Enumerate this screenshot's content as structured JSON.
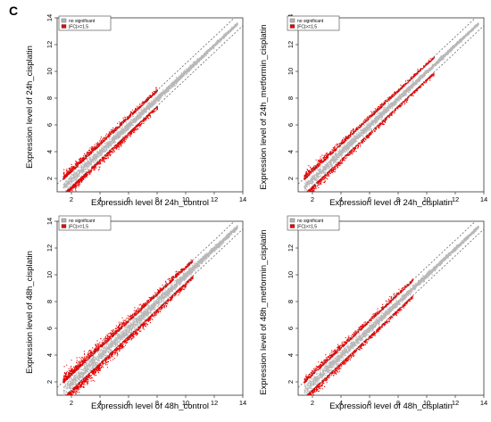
{
  "panel_label": "C",
  "legend": {
    "items": [
      {
        "label": "no significant",
        "color": "#b8b8b8"
      },
      {
        "label": "|FC|>=1.5",
        "color": "#e60000"
      }
    ]
  },
  "colors": {
    "nonsig": "#b8b8b8",
    "sig": "#e60000",
    "axis": "#333333",
    "threshold_line": "#555555"
  },
  "chart_data": [
    {
      "type": "scatter",
      "xlabel": "Expression level  of  24h_control",
      "ylabel": "Expression  level  of  24h_cisplatin",
      "xlim": [
        1,
        14
      ],
      "ylim": [
        1,
        14
      ],
      "xticks": [
        2,
        4,
        6,
        8,
        10,
        12,
        14
      ],
      "yticks": [
        2,
        4,
        6,
        8,
        10,
        12,
        14
      ],
      "fold_change_threshold": 1.5,
      "series": [
        {
          "name": "no significant",
          "x_range": [
            1.4,
            13.6
          ]
        },
        {
          "name": "|FC|>=1.5",
          "x_range": [
            1.4,
            8.0
          ]
        }
      ]
    },
    {
      "type": "scatter",
      "xlabel": "Expression level  of  24h_cisplatin",
      "ylabel": "Expression  level  of  24h_metformin_cisplatin",
      "xlim": [
        1,
        14
      ],
      "ylim": [
        1,
        14
      ],
      "xticks": [
        2,
        4,
        6,
        8,
        10,
        12,
        14
      ],
      "yticks": [
        2,
        4,
        6,
        8,
        10,
        12,
        14
      ],
      "fold_change_threshold": 1.5,
      "series": [
        {
          "name": "no significant",
          "x_range": [
            1.4,
            13.6
          ]
        },
        {
          "name": "|FC|>=1.5",
          "x_range": [
            1.4,
            10.5
          ]
        }
      ]
    },
    {
      "type": "scatter",
      "xlabel": "Expression level  of  48h_control",
      "ylabel": "Expression  level  of  48h_cisplatin",
      "xlim": [
        1,
        14
      ],
      "ylim": [
        1,
        14
      ],
      "xticks": [
        2,
        4,
        6,
        8,
        10,
        12,
        14
      ],
      "yticks": [
        2,
        4,
        6,
        8,
        10,
        12,
        14
      ],
      "fold_change_threshold": 1.5,
      "series": [
        {
          "name": "no significant",
          "x_range": [
            1.4,
            13.6
          ]
        },
        {
          "name": "|FC|>=1.5",
          "x_range": [
            1.4,
            10.5
          ]
        }
      ]
    },
    {
      "type": "scatter",
      "xlabel": "Expression level  of  48h_cisplatin",
      "ylabel": "Expression  level  of  48h_metformin_cisplatin",
      "xlim": [
        1,
        14
      ],
      "ylim": [
        1,
        14
      ],
      "xticks": [
        2,
        4,
        6,
        8,
        10,
        12,
        14
      ],
      "yticks": [
        2,
        4,
        6,
        8,
        10,
        12,
        14
      ],
      "fold_change_threshold": 1.5,
      "series": [
        {
          "name": "no significant",
          "x_range": [
            1.4,
            13.6
          ]
        },
        {
          "name": "|FC|>=1.5",
          "x_range": [
            1.4,
            9.0
          ]
        }
      ]
    }
  ]
}
